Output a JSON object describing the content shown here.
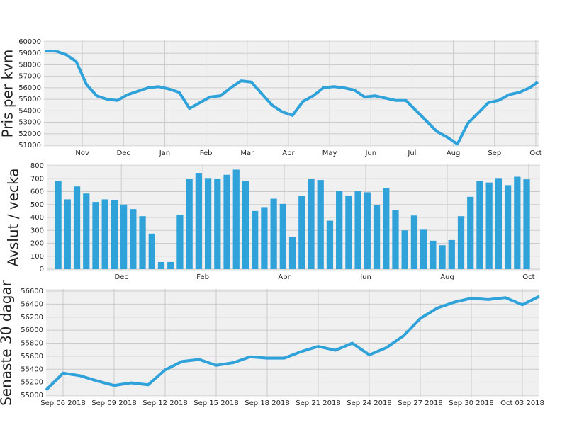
{
  "chart_data": [
    {
      "type": "line",
      "y_label": "Pris per kvm",
      "color": "#30a2da",
      "grid": true,
      "xlim": [
        0.07,
        12.07
      ],
      "xticks": [
        {
          "value": 1,
          "label": "Nov"
        },
        {
          "value": 2,
          "label": "Dec"
        },
        {
          "value": 3,
          "label": "Jan"
        },
        {
          "value": 4,
          "label": "Feb"
        },
        {
          "value": 5,
          "label": "Mar"
        },
        {
          "value": 6,
          "label": "Apr"
        },
        {
          "value": 7,
          "label": "May"
        },
        {
          "value": 8,
          "label": "Jun"
        },
        {
          "value": 9,
          "label": "Jul"
        },
        {
          "value": 10,
          "label": "Aug"
        },
        {
          "value": 11,
          "label": "Sep"
        },
        {
          "value": 12,
          "label": "Oct"
        }
      ],
      "ylim": [
        51000,
        60000
      ],
      "yticks": [
        51000,
        52000,
        53000,
        54000,
        55000,
        56000,
        57000,
        58000,
        59000,
        60000
      ],
      "x": [
        0.1,
        0.35,
        0.6,
        0.85,
        1.1,
        1.35,
        1.6,
        1.85,
        2.1,
        2.35,
        2.6,
        2.85,
        3.1,
        3.35,
        3.6,
        3.85,
        4.1,
        4.35,
        4.6,
        4.85,
        5.1,
        5.35,
        5.6,
        5.85,
        6.1,
        6.35,
        6.6,
        6.85,
        7.1,
        7.35,
        7.6,
        7.85,
        8.1,
        8.35,
        8.6,
        8.85,
        9.1,
        9.35,
        9.6,
        9.85,
        10.1,
        10.35,
        10.6,
        10.85,
        11.1,
        11.35,
        11.6,
        11.85,
        12.05
      ],
      "values": [
        59200,
        59200,
        58900,
        58300,
        56300,
        55300,
        55000,
        54900,
        55400,
        55700,
        56000,
        56100,
        55900,
        55600,
        54200,
        54700,
        55200,
        55300,
        56000,
        56600,
        56500,
        55500,
        54500,
        53900,
        53600,
        54800,
        55300,
        56000,
        56100,
        56000,
        55800,
        55200,
        55300,
        55100,
        54900,
        54900,
        54000,
        53100,
        52200,
        51700,
        51100,
        52900,
        53800,
        54700,
        54900,
        55400,
        55600,
        56000,
        56500
      ]
    },
    {
      "type": "bar",
      "y_label": "Avslut / vecka",
      "color": "#30a2da",
      "grid": true,
      "xlim": [
        0.17,
        12.28
      ],
      "xticks": [
        {
          "value": 2,
          "label": "Dec"
        },
        {
          "value": 4,
          "label": "Feb"
        },
        {
          "value": 6,
          "label": "Apr"
        },
        {
          "value": 8,
          "label": "Jun"
        },
        {
          "value": 10,
          "label": "Aug"
        },
        {
          "value": 12,
          "label": "Oct"
        }
      ],
      "ylim": [
        0,
        800
      ],
      "yticks": [
        0,
        100,
        200,
        300,
        400,
        500,
        600,
        700,
        800
      ],
      "x": [
        0.45,
        0.68,
        0.91,
        1.14,
        1.37,
        1.6,
        1.83,
        2.06,
        2.29,
        2.52,
        2.75,
        2.98,
        3.21,
        3.44,
        3.67,
        3.9,
        4.13,
        4.36,
        4.59,
        4.82,
        5.05,
        5.28,
        5.51,
        5.74,
        5.97,
        6.2,
        6.43,
        6.66,
        6.89,
        7.12,
        7.35,
        7.58,
        7.81,
        8.04,
        8.27,
        8.5,
        8.73,
        8.96,
        9.19,
        9.42,
        9.65,
        9.88,
        10.11,
        10.34,
        10.57,
        10.8,
        11.03,
        11.26,
        11.49,
        11.72,
        11.95
      ],
      "values": [
        680,
        540,
        640,
        585,
        520,
        540,
        535,
        500,
        465,
        410,
        275,
        55,
        55,
        420,
        700,
        745,
        705,
        700,
        730,
        770,
        680,
        450,
        480,
        545,
        505,
        250,
        565,
        700,
        690,
        375,
        605,
        570,
        605,
        595,
        495,
        625,
        460,
        300,
        415,
        305,
        220,
        185,
        225,
        410,
        560,
        680,
        670,
        705,
        650,
        715,
        695
      ]
    },
    {
      "type": "line",
      "y_label": "Senaste 30 dagar",
      "color": "#30a2da",
      "grid": true,
      "ylim": [
        55000,
        56600
      ],
      "yticks": [
        55000,
        55200,
        55400,
        55600,
        55800,
        56000,
        56200,
        56400,
        56600
      ],
      "categories": [
        null,
        "Sep 06 2018",
        null,
        null,
        "Sep 09 2018",
        null,
        null,
        "Sep 12 2018",
        null,
        null,
        "Sep 15 2018",
        null,
        null,
        "Sep 18 2018",
        null,
        null,
        "Sep 21 2018",
        null,
        null,
        "Sep 24 2018",
        null,
        null,
        "Sep 27 2018",
        null,
        null,
        "Sep 30 2018",
        null,
        null,
        "Oct 03 2018",
        null
      ],
      "values": [
        55080,
        55340,
        55300,
        55220,
        55150,
        55190,
        55160,
        55390,
        55520,
        55550,
        55460,
        55500,
        55590,
        55570,
        55570,
        55670,
        55750,
        55690,
        55800,
        55620,
        55730,
        55910,
        56180,
        56340,
        56430,
        56490,
        56470,
        56500,
        56390,
        56520
      ]
    }
  ]
}
